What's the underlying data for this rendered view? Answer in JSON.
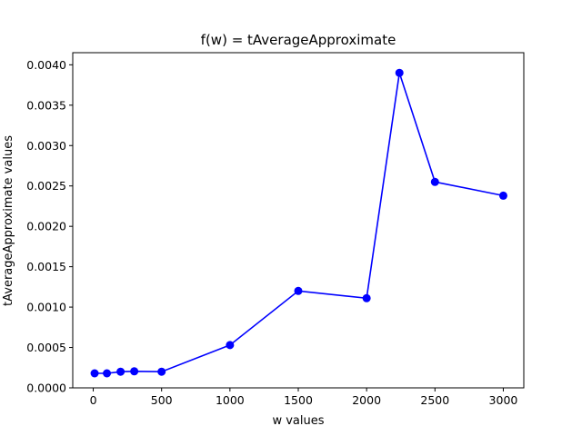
{
  "chart_data": {
    "type": "line",
    "title": "f(w) = tAverageApproximate",
    "xlabel": "w values",
    "ylabel": "tAverageApproximate values",
    "xlim": [
      -150,
      3150
    ],
    "ylim": [
      0,
      0.00415
    ],
    "xticks": [
      0,
      500,
      1000,
      1500,
      2000,
      2500,
      3000
    ],
    "xtick_labels": [
      "0",
      "500",
      "1000",
      "1500",
      "2000",
      "2500",
      "3000"
    ],
    "yticks": [
      0,
      0.0005,
      0.001,
      0.0015,
      0.002,
      0.0025,
      0.003,
      0.0035,
      0.004
    ],
    "ytick_labels": [
      "0.0000",
      "0.0005",
      "0.0010",
      "0.0015",
      "0.0020",
      "0.0025",
      "0.0030",
      "0.0035",
      "0.0040"
    ],
    "grid": false,
    "series": [
      {
        "color": "#0000ff",
        "marker": "circle",
        "x": [
          10,
          100,
          200,
          300,
          500,
          1000,
          1500,
          2000,
          2240,
          2500,
          3000
        ],
        "y": [
          0.00018,
          0.00018,
          0.0002,
          0.000205,
          0.0002,
          0.00053,
          0.0012,
          0.00111,
          0.0039,
          0.00255,
          0.00238
        ]
      }
    ]
  }
}
